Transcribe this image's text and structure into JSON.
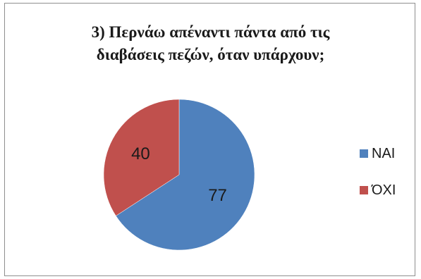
{
  "chart_data": {
    "type": "pie",
    "title": [
      "3) Περνάω απέναντι πάντα από τις",
      "διαβάσεις πεζών, όταν υπάρχουν;"
    ],
    "categories": [
      "ΝΑΙ",
      "ΌΧΙ"
    ],
    "values": [
      77,
      40
    ],
    "colors": [
      "#4f81bd",
      "#c0504d"
    ],
    "legend_position": "right",
    "data_labels": true
  }
}
